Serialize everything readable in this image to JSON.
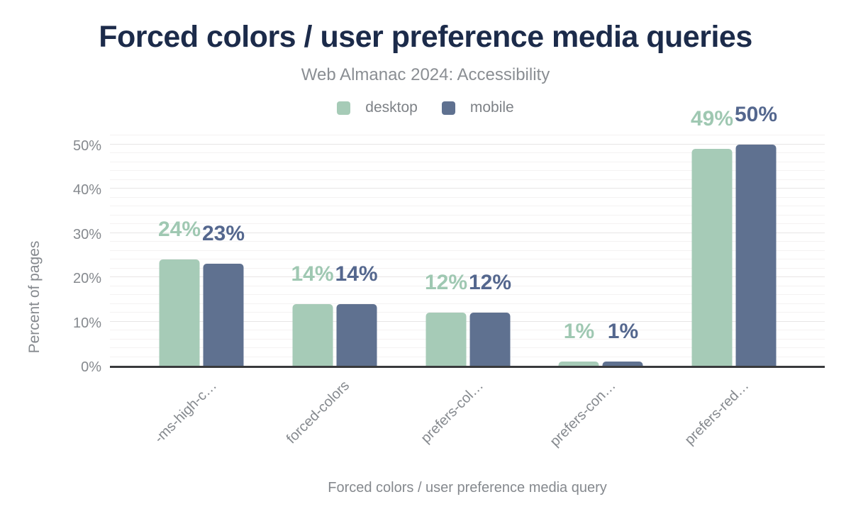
{
  "title": "Forced colors / user preference media queries",
  "subtitle": "Web Almanac 2024: Accessibility",
  "legend": {
    "items": [
      {
        "label": "desktop",
        "color": "#a6cbb7"
      },
      {
        "label": "mobile",
        "color": "#5f7190"
      }
    ]
  },
  "colors": {
    "title": "#1c2b4a",
    "axis_text": "#85898e",
    "desktop_bar": "#a6cbb7",
    "mobile_bar": "#5f7190",
    "desktop_label": "#9fc8b2",
    "mobile_label": "#54678e",
    "axis_line": "#393a3c"
  },
  "chart_data": {
    "type": "bar",
    "title": "Forced colors / user preference media queries",
    "subtitle": "Web Almanac 2024: Accessibility",
    "xlabel": "Forced colors / user preference media query",
    "ylabel": "Percent of pages",
    "categories": [
      "-ms-high-c…",
      "forced-colors",
      "prefers-col…",
      "prefers-con…",
      "prefers-red…"
    ],
    "series": [
      {
        "name": "desktop",
        "color": "#a6cbb7",
        "values": [
          24,
          14,
          12,
          1,
          49
        ],
        "labels": [
          "24%",
          "14%",
          "12%",
          "1%",
          "49%"
        ]
      },
      {
        "name": "mobile",
        "color": "#5f7190",
        "values": [
          23,
          14,
          12,
          1,
          50
        ],
        "labels": [
          "23%",
          "14%",
          "12%",
          "1%",
          "50%"
        ]
      }
    ],
    "ylim": [
      0,
      52
    ],
    "ytick_values": [
      0,
      10,
      20,
      30,
      40,
      50
    ],
    "yticks": [
      "0%",
      "10%",
      "20%",
      "30%",
      "40%",
      "50%"
    ],
    "grid": {
      "minor_step": 2,
      "major_step": 10,
      "orientation": "horizontal"
    },
    "legend_position": "top-center"
  }
}
